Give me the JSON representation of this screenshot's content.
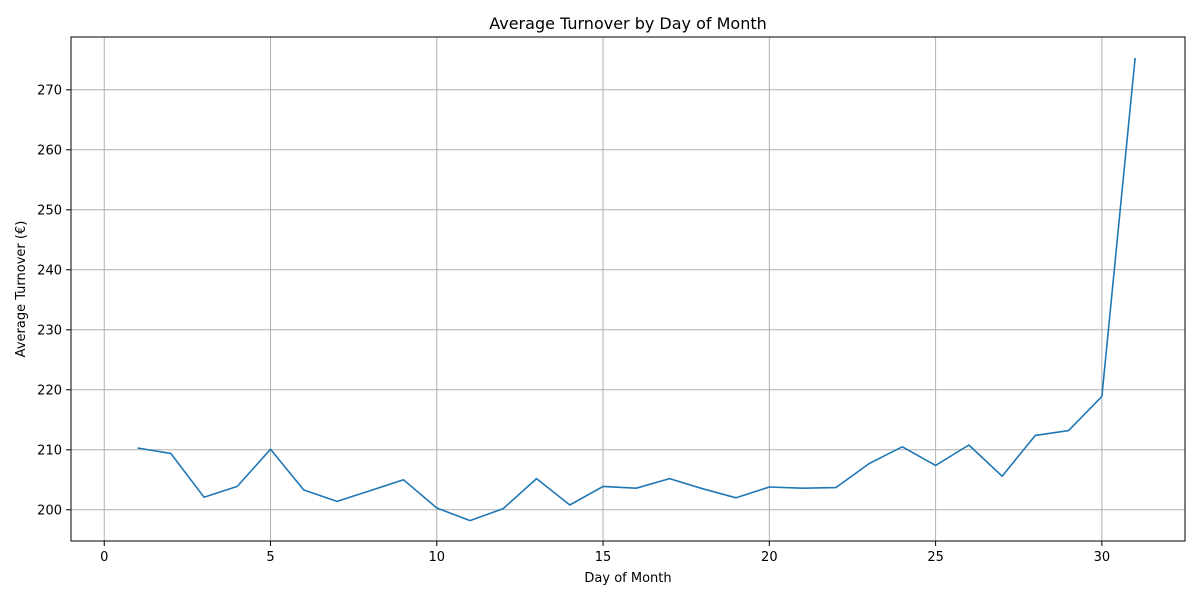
{
  "chart_data": {
    "type": "line",
    "title": "Average Turnover by Day of Month",
    "xlabel": "Day of Month",
    "ylabel": "Average Turnover (€)",
    "xlim": [
      -1,
      32.5
    ],
    "ylim": [
      194.8,
      278.8
    ],
    "xticks": [
      0,
      5,
      10,
      15,
      20,
      25,
      30
    ],
    "yticks": [
      200,
      210,
      220,
      230,
      240,
      250,
      260,
      270
    ],
    "grid": true,
    "series": [
      {
        "color": "#1f77b4",
        "x": [
          1,
          2,
          3,
          4,
          5,
          6,
          7,
          8,
          9,
          10,
          11,
          12,
          13,
          14,
          15,
          16,
          17,
          18,
          19,
          20,
          21,
          22,
          23,
          24,
          25,
          26,
          27,
          28,
          29,
          30,
          31
        ],
        "y": [
          210.3,
          209.4,
          202.1,
          203.9,
          210.1,
          203.3,
          201.4,
          203.2,
          205.0,
          200.3,
          198.2,
          200.2,
          205.2,
          200.8,
          203.9,
          203.6,
          205.2,
          203.5,
          202.0,
          203.8,
          203.6,
          203.7,
          207.7,
          210.5,
          207.4,
          210.8,
          205.6,
          212.4,
          213.2,
          218.9,
          275.3
        ]
      }
    ]
  }
}
